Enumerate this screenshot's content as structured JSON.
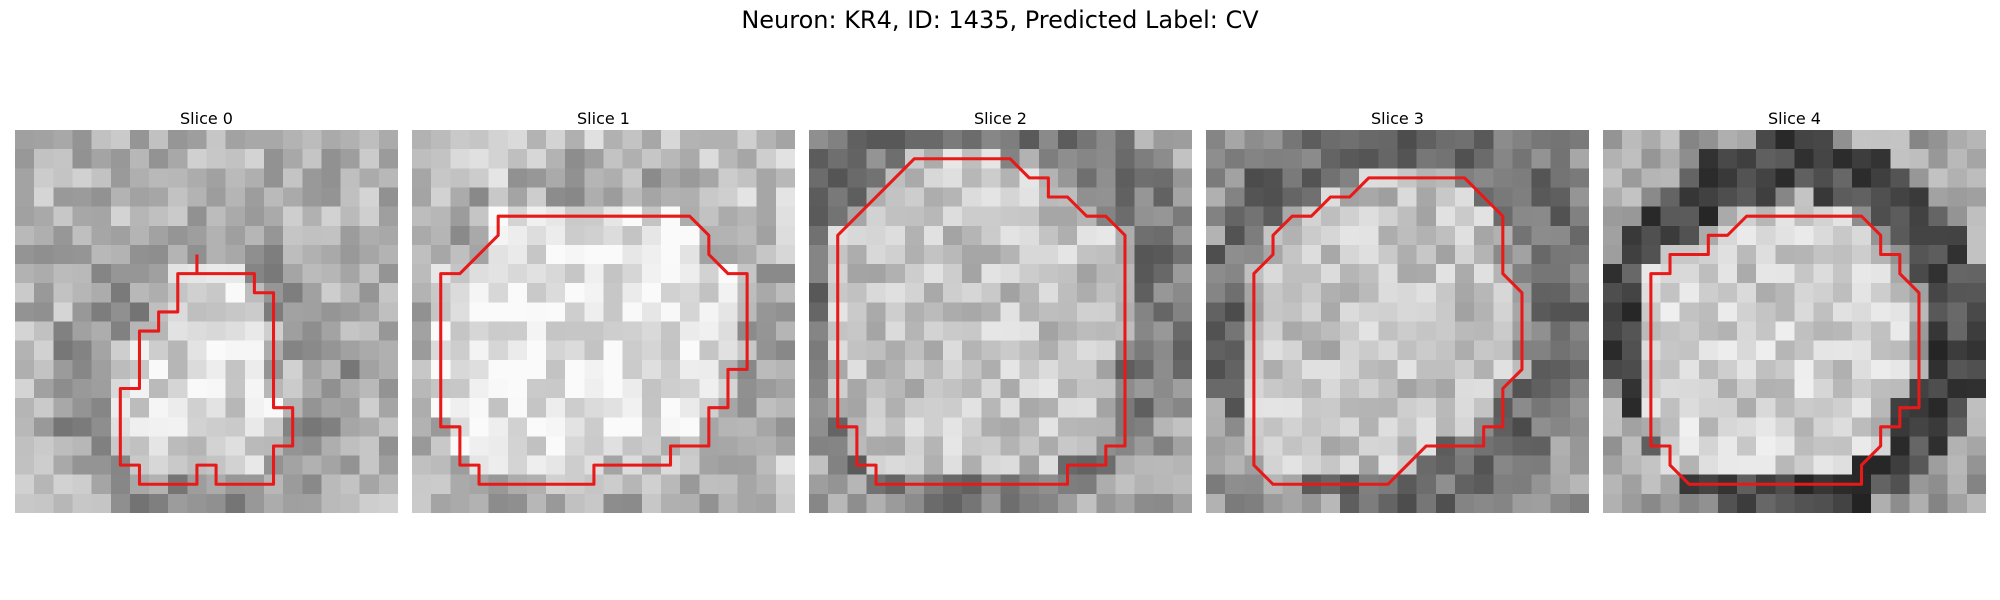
{
  "figure": {
    "title": "Neuron: KR4, ID: 1435, Predicted Label: CV"
  },
  "panels": [
    {
      "title": "Slice 0",
      "seed": 11,
      "bg": 178,
      "ring_dark": 150,
      "interior": 215,
      "contour": [
        [
          9.5,
          6.5
        ],
        [
          9.5,
          7.5
        ],
        [
          12.5,
          7.5
        ],
        [
          12.5,
          8.5
        ],
        [
          13.5,
          8.5
        ],
        [
          13.5,
          14.5
        ],
        [
          14.5,
          14.5
        ],
        [
          14.5,
          16.5
        ],
        [
          13.5,
          16.5
        ],
        [
          13.5,
          18.5
        ],
        [
          10.5,
          18.5
        ],
        [
          10.5,
          17.5
        ],
        [
          9.5,
          17.5
        ],
        [
          9.5,
          18.5
        ],
        [
          6.5,
          18.5
        ],
        [
          6.5,
          17.5
        ],
        [
          5.5,
          17.5
        ],
        [
          5.5,
          13.5
        ],
        [
          6.5,
          13.5
        ],
        [
          6.5,
          10.5
        ],
        [
          7.5,
          10.5
        ],
        [
          7.5,
          9.5
        ],
        [
          8.5,
          9.5
        ],
        [
          8.5,
          7.5
        ],
        [
          9.5,
          7.5
        ]
      ]
    },
    {
      "title": "Slice 1",
      "seed": 23,
      "bg": 196,
      "ring_dark": 170,
      "interior": 228,
      "contour": [
        [
          8.5,
          4.5
        ],
        [
          14.5,
          4.5
        ],
        [
          15.5,
          5.5
        ],
        [
          15.5,
          6.5
        ],
        [
          16.5,
          7.5
        ],
        [
          17.5,
          7.5
        ],
        [
          17.5,
          12.5
        ],
        [
          16.5,
          12.5
        ],
        [
          16.5,
          14.5
        ],
        [
          15.5,
          14.5
        ],
        [
          15.5,
          16.5
        ],
        [
          14.5,
          16.5
        ],
        [
          13.5,
          16.5
        ],
        [
          13.5,
          17.5
        ],
        [
          9.5,
          17.5
        ],
        [
          9.5,
          18.5
        ],
        [
          3.5,
          18.5
        ],
        [
          3.5,
          17.5
        ],
        [
          2.5,
          17.5
        ],
        [
          2.5,
          15.5
        ],
        [
          1.5,
          15.5
        ],
        [
          1.5,
          13.5
        ],
        [
          1.5,
          7.5
        ],
        [
          2.5,
          7.5
        ],
        [
          4.5,
          5.5
        ],
        [
          4.5,
          4.5
        ],
        [
          8.5,
          4.5
        ]
      ]
    },
    {
      "title": "Slice 2",
      "seed": 37,
      "bg": 160,
      "ring_dark": 120,
      "interior": 196,
      "contour": [
        [
          6.5,
          1.5
        ],
        [
          10.5,
          1.5
        ],
        [
          11.5,
          2.5
        ],
        [
          12.5,
          2.5
        ],
        [
          12.5,
          3.5
        ],
        [
          13.5,
          3.5
        ],
        [
          14.5,
          4.5
        ],
        [
          15.5,
          4.5
        ],
        [
          16.5,
          5.5
        ],
        [
          16.5,
          16.5
        ],
        [
          15.5,
          16.5
        ],
        [
          15.5,
          17.5
        ],
        [
          13.5,
          17.5
        ],
        [
          13.5,
          18.5
        ],
        [
          3.5,
          18.5
        ],
        [
          3.5,
          17.5
        ],
        [
          2.5,
          17.5
        ],
        [
          2.5,
          15.5
        ],
        [
          1.5,
          15.5
        ],
        [
          1.5,
          5.5
        ],
        [
          2.5,
          4.5
        ],
        [
          3.5,
          3.5
        ],
        [
          4.5,
          2.5
        ],
        [
          5.5,
          1.5
        ],
        [
          6.5,
          1.5
        ]
      ]
    },
    {
      "title": "Slice 3",
      "seed": 49,
      "bg": 150,
      "ring_dark": 110,
      "interior": 194,
      "contour": [
        [
          9.5,
          2.5
        ],
        [
          13.5,
          2.5
        ],
        [
          14.5,
          3.5
        ],
        [
          15.5,
          4.5
        ],
        [
          15.5,
          7.5
        ],
        [
          16.5,
          8.5
        ],
        [
          16.5,
          12.5
        ],
        [
          15.5,
          13.5
        ],
        [
          15.5,
          15.5
        ],
        [
          14.5,
          15.5
        ],
        [
          14.5,
          16.5
        ],
        [
          12.5,
          16.5
        ],
        [
          11.5,
          16.5
        ],
        [
          10.5,
          17.5
        ],
        [
          9.5,
          18.5
        ],
        [
          3.5,
          18.5
        ],
        [
          2.5,
          17.5
        ],
        [
          2.5,
          7.5
        ],
        [
          3.5,
          6.5
        ],
        [
          3.5,
          5.5
        ],
        [
          4.5,
          4.5
        ],
        [
          5.5,
          4.5
        ],
        [
          6.5,
          3.5
        ],
        [
          7.5,
          3.5
        ],
        [
          8.5,
          2.5
        ],
        [
          9.5,
          2.5
        ]
      ]
    },
    {
      "title": "Slice 4",
      "seed": 61,
      "bg": 165,
      "ring_dark": 70,
      "interior": 205,
      "contour": [
        [
          10.5,
          4.5
        ],
        [
          13.5,
          4.5
        ],
        [
          14.5,
          5.5
        ],
        [
          14.5,
          6.5
        ],
        [
          15.5,
          6.5
        ],
        [
          15.5,
          7.5
        ],
        [
          16.5,
          8.5
        ],
        [
          16.5,
          14.5
        ],
        [
          15.5,
          14.5
        ],
        [
          15.5,
          15.5
        ],
        [
          14.5,
          15.5
        ],
        [
          14.5,
          16.5
        ],
        [
          13.5,
          17.5
        ],
        [
          13.5,
          18.5
        ],
        [
          4.5,
          18.5
        ],
        [
          3.5,
          17.5
        ],
        [
          3.5,
          16.5
        ],
        [
          2.5,
          16.5
        ],
        [
          2.5,
          7.5
        ],
        [
          3.5,
          7.5
        ],
        [
          3.5,
          6.5
        ],
        [
          5.5,
          6.5
        ],
        [
          5.5,
          5.5
        ],
        [
          6.5,
          5.5
        ],
        [
          7.5,
          4.5
        ],
        [
          9.5,
          4.5
        ],
        [
          10.5,
          4.5
        ]
      ]
    }
  ]
}
